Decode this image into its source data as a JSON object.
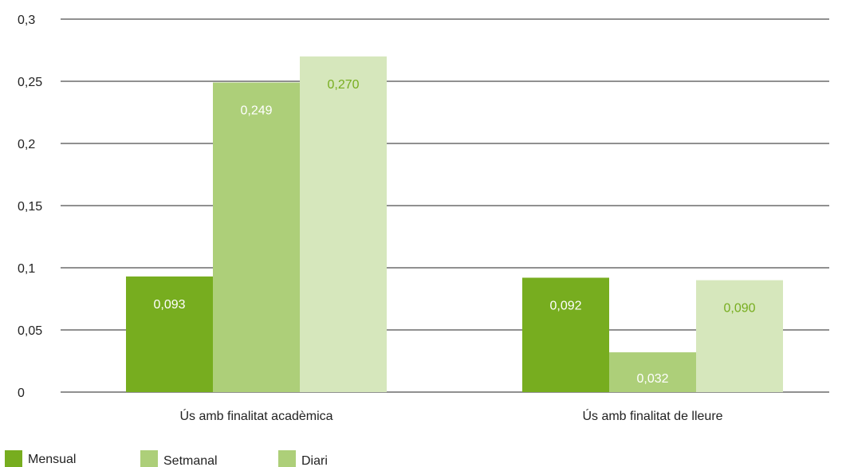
{
  "chart_data": {
    "type": "bar",
    "categories": [
      "Ús amb finalitat acadèmica",
      "Ús amb finalitat de lleure"
    ],
    "series": [
      {
        "name": "Mensual",
        "values": [
          0.093,
          0.092
        ],
        "labels": [
          "0,093",
          "0,092"
        ],
        "color": "#77ad1f",
        "label_color": "#ffffff"
      },
      {
        "name": "Setmanal",
        "values": [
          0.249,
          0.032
        ],
        "labels": [
          "0,249",
          "0,032"
        ],
        "color": "#adcf79",
        "label_color": "#ffffff"
      },
      {
        "name": "Diari",
        "values": [
          0.27,
          0.09
        ],
        "labels": [
          "0,270",
          "0,090"
        ],
        "color": "#d6e7bc",
        "label_color": "#77ad1f"
      }
    ],
    "ylim": [
      0,
      0.3
    ],
    "yticks": [
      0,
      0.05,
      0.1,
      0.15,
      0.2,
      0.25,
      0.3
    ],
    "ytick_labels": [
      "0",
      "0,05",
      "0,1",
      "0,15",
      "0,2",
      "0,25",
      "0,3"
    ],
    "legend_swatch_colors": [
      "#77ad1f",
      "#adcf79",
      "#adcf79"
    ],
    "grid": true,
    "legend_position": "bottom-left"
  }
}
